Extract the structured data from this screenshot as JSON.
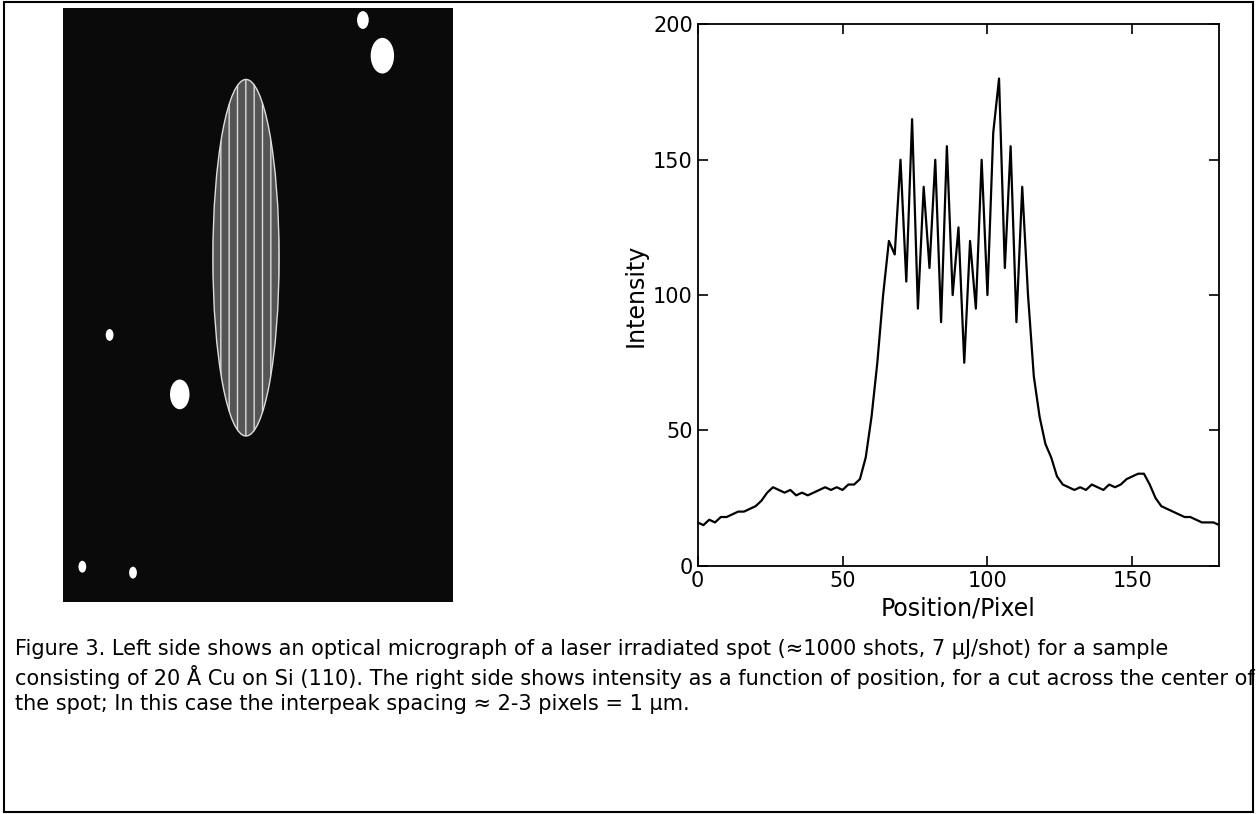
{
  "caption": "Figure 3. Left side shows an optical micrograph of a laser irradiated spot (≈1000 shots, 7 µJ/shot) for a sample consisting of 20 Å Cu on Si (110). The right side shows intensity as a function of position, for a cut across the center of the spot; In this case the interpeak spacing ≈ 2-3 pixels = 1 µm.",
  "chart_data": {
    "type": "line",
    "xlabel": "Position/Pixel",
    "ylabel": "Intensity",
    "color": "#000000",
    "x": [
      0,
      2,
      4,
      6,
      8,
      10,
      12,
      14,
      16,
      18,
      20,
      22,
      24,
      26,
      28,
      30,
      32,
      34,
      36,
      38,
      40,
      42,
      44,
      46,
      48,
      50,
      52,
      54,
      56,
      58,
      60,
      62,
      64,
      66,
      68,
      70,
      72,
      74,
      76,
      78,
      80,
      82,
      84,
      86,
      88,
      90,
      92,
      94,
      96,
      98,
      100,
      102,
      104,
      106,
      108,
      110,
      112,
      114,
      116,
      118,
      120,
      122,
      124,
      126,
      128,
      130,
      132,
      134,
      136,
      138,
      140,
      142,
      144,
      146,
      148,
      150,
      152,
      154,
      156,
      158,
      160,
      162,
      164,
      166,
      168,
      170,
      172,
      174,
      176,
      178,
      180
    ],
    "values": [
      16,
      15,
      17,
      16,
      18,
      18,
      19,
      20,
      20,
      21,
      22,
      24,
      27,
      29,
      28,
      27,
      28,
      26,
      27,
      26,
      27,
      28,
      29,
      28,
      29,
      28,
      30,
      30,
      32,
      40,
      55,
      75,
      100,
      120,
      115,
      150,
      105,
      165,
      95,
      140,
      110,
      150,
      90,
      155,
      100,
      125,
      75,
      120,
      95,
      150,
      100,
      160,
      180,
      110,
      155,
      90,
      140,
      100,
      70,
      55,
      45,
      40,
      33,
      30,
      29,
      28,
      29,
      28,
      30,
      29,
      28,
      30,
      29,
      30,
      32,
      33,
      34,
      34,
      30,
      25,
      22,
      21,
      20,
      19,
      18,
      18,
      17,
      16,
      16,
      16,
      15
    ],
    "xlim": [
      0,
      180
    ],
    "ylim": [
      0,
      200
    ],
    "xticks": [
      0,
      50,
      100,
      150
    ],
    "yticks": [
      0,
      50,
      100,
      150,
      200
    ]
  }
}
